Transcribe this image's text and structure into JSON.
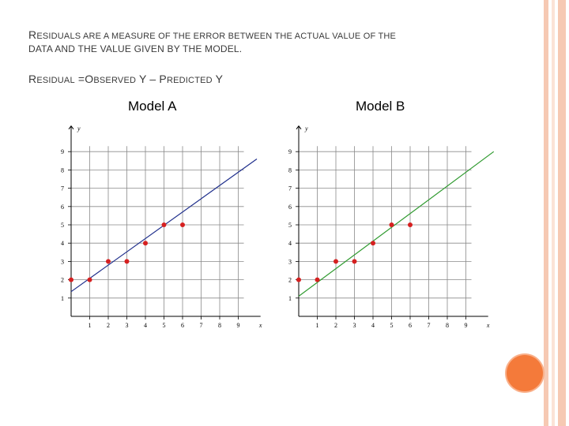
{
  "slide": {
    "line1": [
      "R",
      "ESIDUALS ARE A MEASURE OF THE ERROR BETWEEN THE ACTUAL VALUE OF THE"
    ],
    "line2": "DATA AND THE VALUE GIVEN BY THE MODEL.",
    "line3_parts": [
      "R",
      "ESIDUAL",
      " =O",
      "BSERVED",
      " Y – P",
      "REDICTED",
      " Y"
    ],
    "decor_colors": {
      "stripe_1": "#f6c9b3",
      "stripe_2": "#fbe3d6",
      "dot": "#f47a3a"
    }
  },
  "chart_data": [
    {
      "type": "scatter",
      "title": "Model A",
      "xlabel": "x",
      "ylabel": "y",
      "xlim": [
        0,
        10
      ],
      "ylim": [
        0,
        10
      ],
      "x_ticks": [
        1,
        2,
        3,
        4,
        5,
        6,
        7,
        8,
        9
      ],
      "y_ticks": [
        1,
        2,
        3,
        4,
        5,
        6,
        7,
        8,
        9
      ],
      "grid": true,
      "points": {
        "x": [
          0,
          1,
          2,
          3,
          4,
          5,
          6
        ],
        "y": [
          2,
          2,
          3,
          3,
          4,
          5,
          5
        ]
      },
      "fit_line": {
        "x": [
          0,
          10
        ],
        "y": [
          1.35,
          8.6
        ]
      },
      "line_color": "#1f2f8c",
      "point_color": "#d62020"
    },
    {
      "type": "scatter",
      "title": "Model B",
      "xlabel": "x",
      "ylabel": "y",
      "xlim": [
        0,
        10
      ],
      "ylim": [
        0,
        10
      ],
      "x_ticks": [
        1,
        2,
        3,
        4,
        5,
        6,
        7,
        8,
        9
      ],
      "y_ticks": [
        1,
        2,
        3,
        4,
        5,
        6,
        7,
        8,
        9
      ],
      "grid": true,
      "points": {
        "x": [
          0,
          1,
          2,
          3,
          4,
          5,
          6
        ],
        "y": [
          2,
          2,
          3,
          3,
          4,
          5,
          5
        ]
      },
      "fit_line": {
        "x": [
          0,
          10.5
        ],
        "y": [
          1.1,
          9.0
        ]
      },
      "line_color": "#2f9a2f",
      "point_color": "#d62020"
    }
  ]
}
